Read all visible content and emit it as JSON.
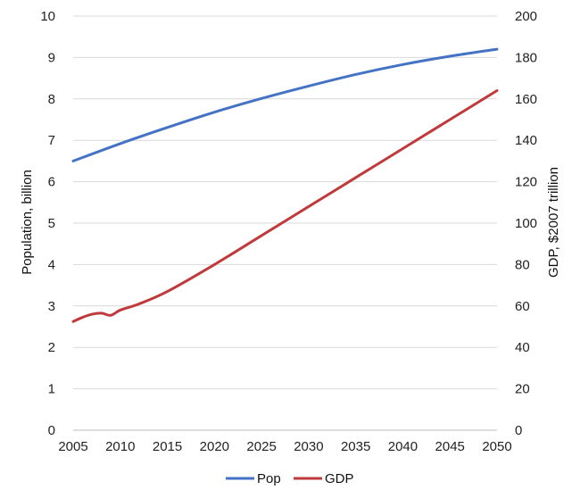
{
  "chart_data": {
    "type": "line",
    "title": "",
    "xlabel": "",
    "ylabel": "Population, billion",
    "y2label": "GDP, $2007 trillion",
    "xlim": [
      2005,
      2050
    ],
    "ylim": [
      0,
      10
    ],
    "y2lim": [
      0,
      200
    ],
    "xticks": [
      2005,
      2010,
      2015,
      2020,
      2025,
      2030,
      2035,
      2040,
      2045,
      2050
    ],
    "yticks": [
      0,
      1,
      2,
      3,
      4,
      5,
      6,
      7,
      8,
      9,
      10
    ],
    "y2ticks": [
      0,
      20,
      40,
      60,
      80,
      100,
      120,
      140,
      160,
      180,
      200
    ],
    "grid": true,
    "legend_position": "bottom",
    "series": [
      {
        "name": "Pop",
        "axis": "left",
        "color": "#4472C4",
        "x": [
          2005,
          2010,
          2015,
          2020,
          2025,
          2030,
          2035,
          2040,
          2045,
          2050
        ],
        "values": [
          6.5,
          6.92,
          7.31,
          7.68,
          8.01,
          8.31,
          8.59,
          8.83,
          9.03,
          9.2
        ]
      },
      {
        "name": "GDP",
        "axis": "right",
        "color": "#C0393B",
        "x": [
          2005,
          2006,
          2007,
          2008,
          2009,
          2010,
          2012,
          2015,
          2020,
          2025,
          2030,
          2035,
          2040,
          2045,
          2050
        ],
        "values": [
          52.5,
          54.5,
          56,
          56.5,
          55.5,
          58,
          61,
          67,
          80,
          94,
          108,
          122,
          136,
          150,
          164
        ]
      }
    ]
  }
}
